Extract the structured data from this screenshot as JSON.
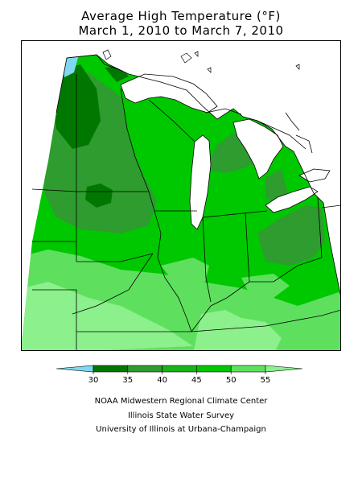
{
  "title": {
    "line1": "Average High Temperature (°F)",
    "line2": "March 1, 2010 to March 7, 2010"
  },
  "legend": {
    "ticks": [
      "30",
      "35",
      "40",
      "45",
      "50",
      "55"
    ],
    "bins": [
      {
        "range": "<30",
        "color": "#80d8f0"
      },
      {
        "range": "30-35",
        "color": "#007800"
      },
      {
        "range": "35-40",
        "color": "#2e9c2e"
      },
      {
        "range": "40-45",
        "color": "#16b416"
      },
      {
        "range": "45-50",
        "color": "#00c800"
      },
      {
        "range": "50-55",
        "color": "#5ee05e"
      },
      {
        "range": ">55",
        "color": "#8cf08c"
      }
    ]
  },
  "credits": {
    "line1": "NOAA Midwestern Regional Climate Center",
    "line2": "Illinois State Water Survey",
    "line3": "University of Illinois at Urbana-Champaign"
  }
}
